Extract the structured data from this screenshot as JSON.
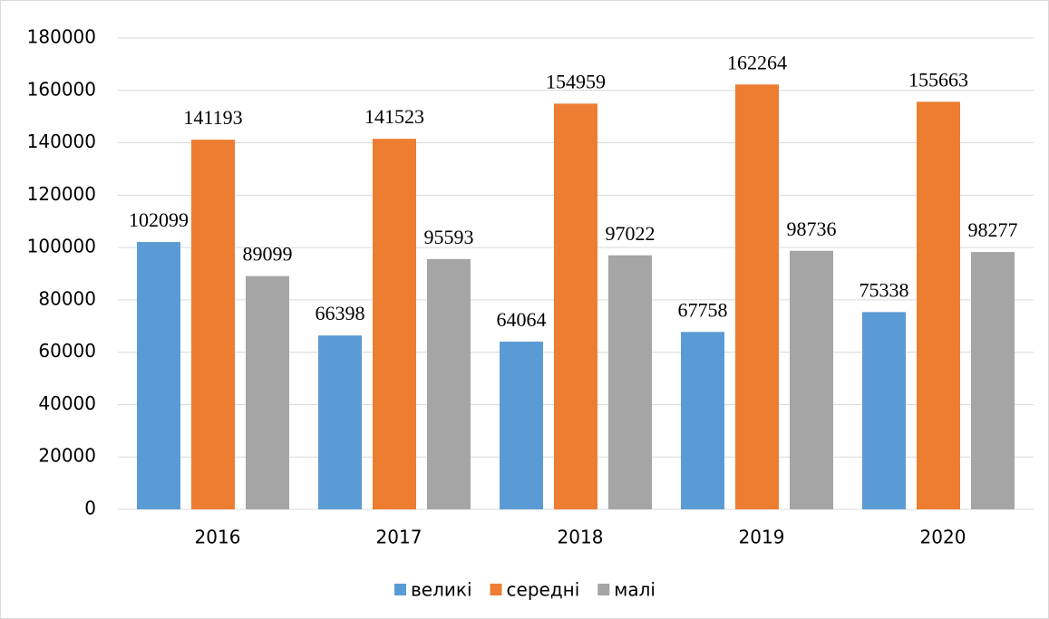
{
  "chart_data": {
    "type": "bar",
    "categories": [
      "2016",
      "2017",
      "2018",
      "2019",
      "2020"
    ],
    "series": [
      {
        "name": "великі",
        "color": "#5b9bd5",
        "values": [
          102099,
          66398,
          64064,
          67758,
          75338
        ]
      },
      {
        "name": "середні",
        "color": "#ed7d31",
        "values": [
          141193,
          141523,
          154959,
          162264,
          155663
        ]
      },
      {
        "name": "малі",
        "color": "#a5a5a5",
        "values": [
          89099,
          95593,
          97022,
          98736,
          98277
        ]
      }
    ],
    "ylim": [
      0,
      180000
    ],
    "yticks": [
      0,
      20000,
      40000,
      60000,
      80000,
      100000,
      120000,
      140000,
      160000,
      180000
    ],
    "grid": true,
    "legend": "bottom"
  }
}
